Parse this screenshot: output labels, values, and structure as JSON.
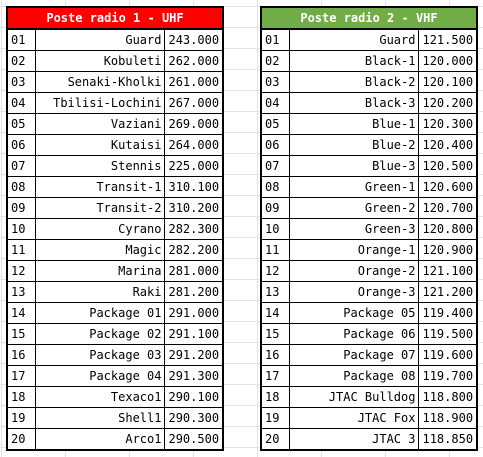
{
  "uhf": {
    "title": "Poste radio 1 - UHF",
    "header_color": "#ff0000",
    "rows": [
      {
        "n": "01",
        "name": "Guard",
        "freq": "243.000"
      },
      {
        "n": "02",
        "name": "Kobuleti",
        "freq": "262.000"
      },
      {
        "n": "03",
        "name": "Senaki-Kholki",
        "freq": "261.000"
      },
      {
        "n": "04",
        "name": "Tbilisi-Lochini",
        "freq": "267.000"
      },
      {
        "n": "05",
        "name": "Vaziani",
        "freq": "269.000"
      },
      {
        "n": "06",
        "name": "Kutaisi",
        "freq": "264.000"
      },
      {
        "n": "07",
        "name": "Stennis",
        "freq": "225.000"
      },
      {
        "n": "08",
        "name": "Transit-1",
        "freq": "310.100"
      },
      {
        "n": "09",
        "name": "Transit-2",
        "freq": "310.200"
      },
      {
        "n": "10",
        "name": "Cyrano",
        "freq": "282.300"
      },
      {
        "n": "11",
        "name": "Magic",
        "freq": "282.200"
      },
      {
        "n": "12",
        "name": "Marina",
        "freq": "281.000"
      },
      {
        "n": "13",
        "name": "Raki",
        "freq": "281.200"
      },
      {
        "n": "14",
        "name": "Package 01",
        "freq": "291.000"
      },
      {
        "n": "15",
        "name": "Package 02",
        "freq": "291.100"
      },
      {
        "n": "16",
        "name": "Package 03",
        "freq": "291.200"
      },
      {
        "n": "17",
        "name": "Package 04",
        "freq": "291.300"
      },
      {
        "n": "18",
        "name": "Texaco1",
        "freq": "290.100"
      },
      {
        "n": "19",
        "name": "Shell1",
        "freq": "290.300"
      },
      {
        "n": "20",
        "name": "Arco1",
        "freq": "290.500"
      }
    ]
  },
  "vhf": {
    "title": "Poste radio 2 - VHF",
    "header_color": "#70ad47",
    "rows": [
      {
        "n": "01",
        "name": "Guard",
        "freq": "121.500"
      },
      {
        "n": "02",
        "name": "Black-1",
        "freq": "120.000"
      },
      {
        "n": "03",
        "name": "Black-2",
        "freq": "120.100"
      },
      {
        "n": "04",
        "name": "Black-3",
        "freq": "120.200"
      },
      {
        "n": "05",
        "name": "Blue-1",
        "freq": "120.300"
      },
      {
        "n": "06",
        "name": "Blue-2",
        "freq": "120.400"
      },
      {
        "n": "07",
        "name": "Blue-3",
        "freq": "120.500"
      },
      {
        "n": "08",
        "name": "Green-1",
        "freq": "120.600"
      },
      {
        "n": "09",
        "name": "Green-2",
        "freq": "120.700"
      },
      {
        "n": "10",
        "name": "Green-3",
        "freq": "120.800"
      },
      {
        "n": "11",
        "name": "Orange-1",
        "freq": "120.900"
      },
      {
        "n": "12",
        "name": "Orange-2",
        "freq": "121.100"
      },
      {
        "n": "13",
        "name": "Orange-3",
        "freq": "121.200"
      },
      {
        "n": "14",
        "name": "Package 05",
        "freq": "119.400"
      },
      {
        "n": "15",
        "name": "Package 06",
        "freq": "119.500"
      },
      {
        "n": "16",
        "name": "Package 07",
        "freq": "119.600"
      },
      {
        "n": "17",
        "name": "Package 08",
        "freq": "119.700"
      },
      {
        "n": "18",
        "name": "JTAC Bulldog",
        "freq": "118.800"
      },
      {
        "n": "19",
        "name": "JTAC Fox",
        "freq": "118.900"
      },
      {
        "n": "20",
        "name": "JTAC 3",
        "freq": "118.850"
      }
    ]
  }
}
